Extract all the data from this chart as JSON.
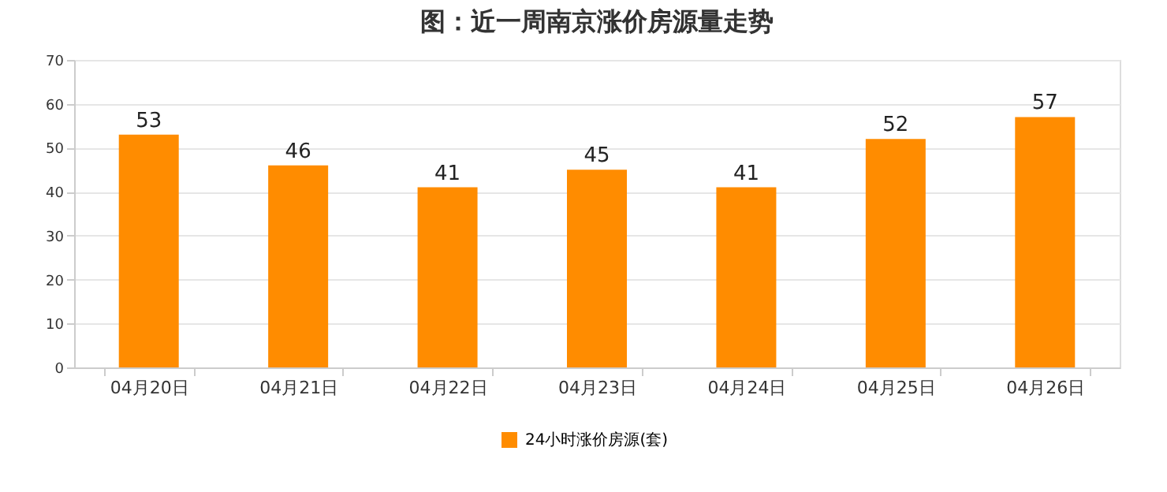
{
  "chart_data": {
    "type": "bar",
    "title": "图：近一周南京涨价房源量走势",
    "categories": [
      "04月20日",
      "04月21日",
      "04月22日",
      "04月23日",
      "04月24日",
      "04月25日",
      "04月26日"
    ],
    "series": [
      {
        "name": "24小时涨价房源(套)",
        "color": "#ff8c00",
        "values": [
          53,
          46,
          41,
          45,
          41,
          52,
          57
        ]
      }
    ],
    "ylim": [
      0,
      70
    ],
    "yticks": [
      0,
      10,
      20,
      30,
      40,
      50,
      60,
      70
    ],
    "grid": "y",
    "legend": "bottom",
    "data_labels": true
  }
}
